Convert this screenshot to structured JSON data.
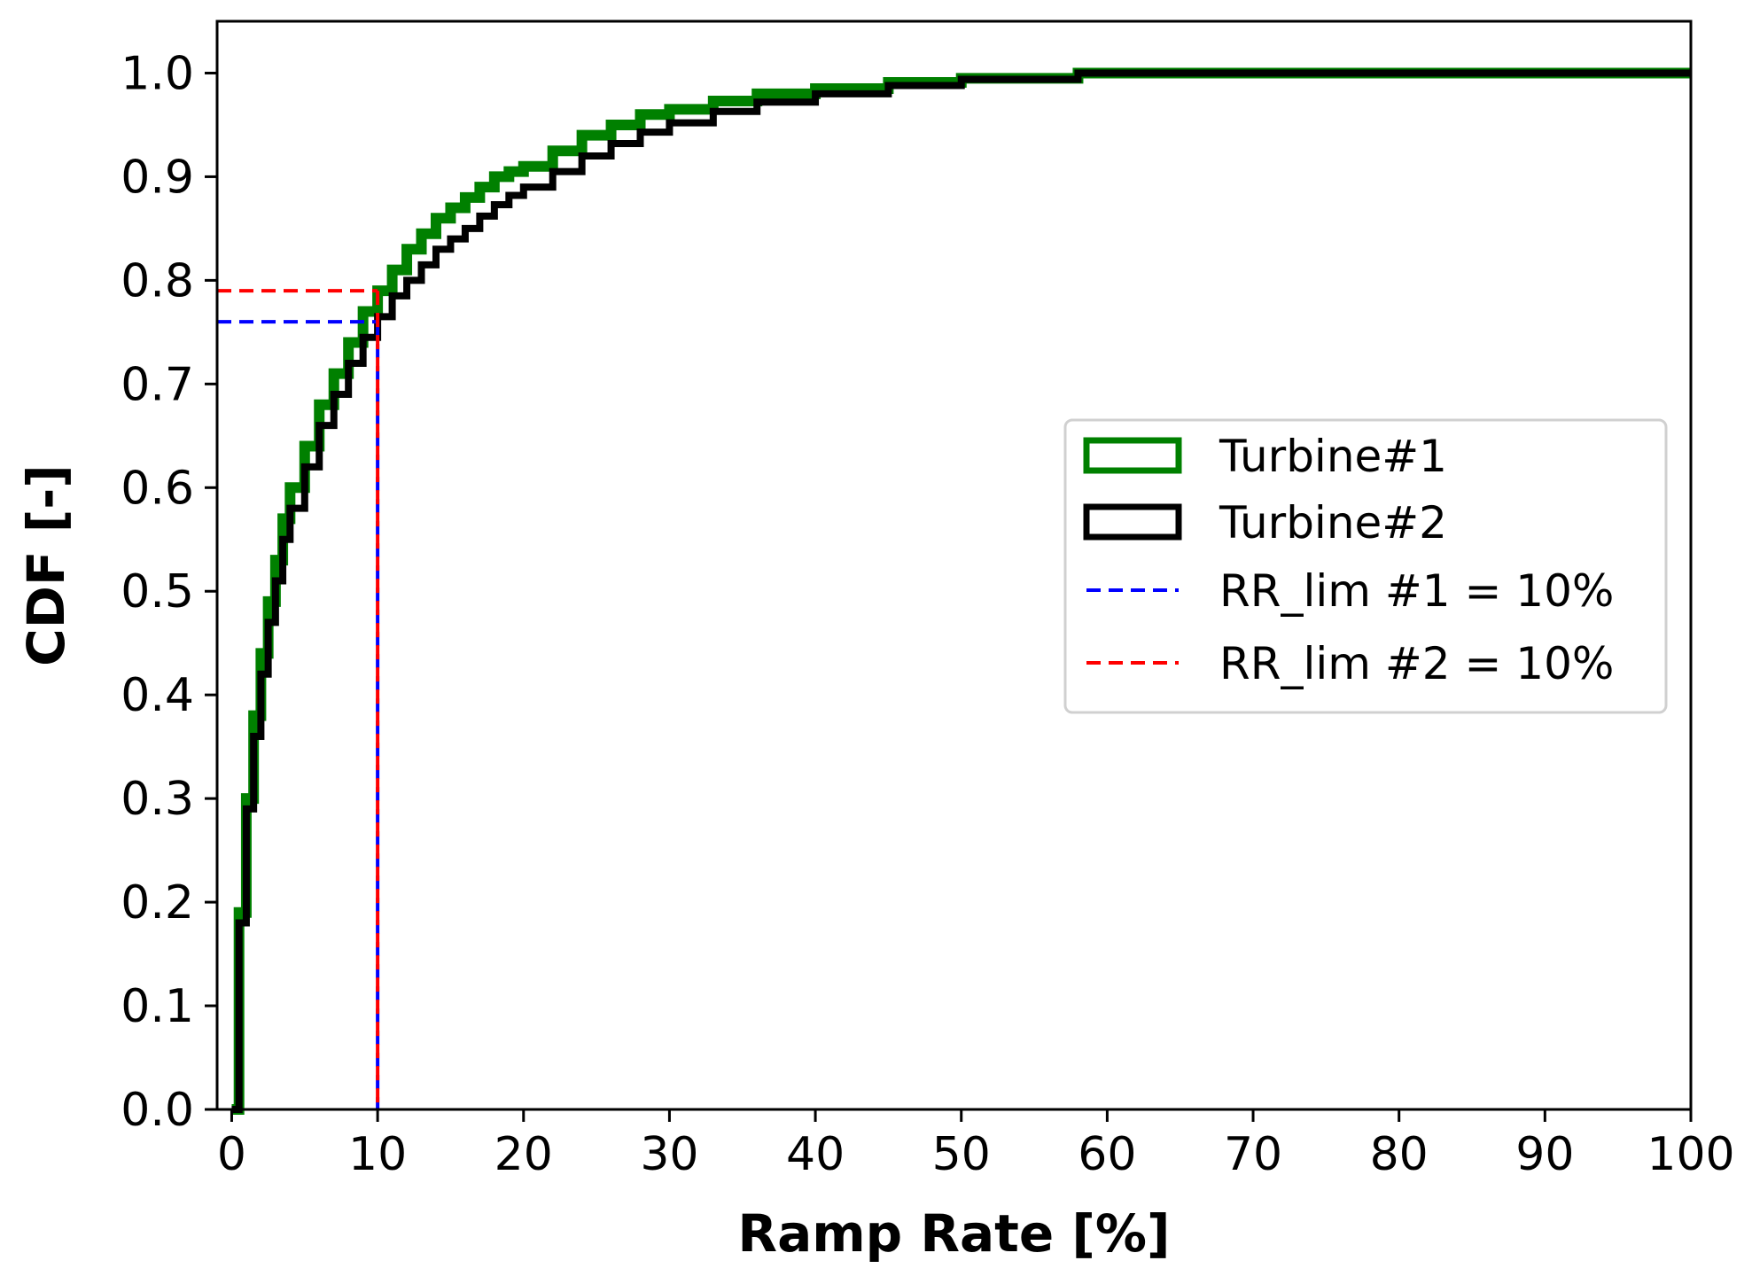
{
  "chart_data": {
    "type": "line",
    "subtype": "step-cdf",
    "title": "",
    "xlabel": "Ramp Rate [%]",
    "ylabel": "CDF [-]",
    "xlim": [
      -1,
      100
    ],
    "ylim": [
      0.0,
      1.05
    ],
    "xticks": [
      0,
      10,
      20,
      30,
      40,
      50,
      60,
      70,
      80,
      90,
      100
    ],
    "xtick_labels": [
      "0",
      "10",
      "20",
      "30",
      "40",
      "50",
      "60",
      "70",
      "80",
      "90",
      "100"
    ],
    "yticks": [
      0.0,
      0.1,
      0.2,
      0.3,
      0.4,
      0.5,
      0.6,
      0.7,
      0.8,
      0.9,
      1.0
    ],
    "ytick_labels": [
      "0.0",
      "0.1",
      "0.2",
      "0.3",
      "0.4",
      "0.5",
      "0.6",
      "0.7",
      "0.8",
      "0.9",
      "1.0"
    ],
    "legend_position": "center-right",
    "series": [
      {
        "name": "Turbine#1",
        "color": "#008000",
        "style": "step",
        "x": [
          0,
          0.5,
          1,
          1.5,
          2,
          2.5,
          3,
          3.5,
          4,
          5,
          6,
          7,
          8,
          9,
          10,
          11,
          12,
          13,
          14,
          15,
          16,
          17,
          18,
          19,
          20,
          22,
          24,
          26,
          28,
          30,
          33,
          36,
          40,
          45,
          50,
          58,
          100
        ],
        "y": [
          0.0,
          0.19,
          0.3,
          0.38,
          0.44,
          0.49,
          0.53,
          0.57,
          0.6,
          0.64,
          0.68,
          0.71,
          0.74,
          0.77,
          0.79,
          0.81,
          0.83,
          0.845,
          0.86,
          0.87,
          0.88,
          0.89,
          0.9,
          0.905,
          0.91,
          0.925,
          0.94,
          0.95,
          0.96,
          0.965,
          0.973,
          0.98,
          0.985,
          0.991,
          0.995,
          1.0,
          1.0
        ]
      },
      {
        "name": "Turbine#2",
        "color": "#000000",
        "style": "step",
        "x": [
          0,
          0.5,
          1,
          1.5,
          2,
          2.5,
          3,
          3.5,
          4,
          5,
          6,
          7,
          8,
          9,
          10,
          11,
          12,
          13,
          14,
          15,
          16,
          17,
          18,
          19,
          20,
          22,
          24,
          26,
          28,
          30,
          33,
          36,
          40,
          45,
          50,
          58,
          100
        ],
        "y": [
          0.0,
          0.18,
          0.29,
          0.36,
          0.42,
          0.47,
          0.51,
          0.55,
          0.58,
          0.62,
          0.66,
          0.69,
          0.72,
          0.745,
          0.765,
          0.785,
          0.8,
          0.815,
          0.83,
          0.84,
          0.85,
          0.862,
          0.873,
          0.882,
          0.89,
          0.905,
          0.92,
          0.932,
          0.943,
          0.952,
          0.963,
          0.972,
          0.98,
          0.988,
          0.994,
          1.0,
          1.0
        ]
      }
    ],
    "reference_lines": [
      {
        "name": "RR_lim #1 = 10%",
        "color": "#0000ff",
        "style": "dashed",
        "x_at": 10,
        "y_at": 0.76
      },
      {
        "name": "RR_lim #2 = 10%",
        "color": "#ff0000",
        "style": "dashed",
        "x_at": 10,
        "y_at": 0.79
      }
    ],
    "legend": [
      "Turbine#1",
      "Turbine#2",
      "RR_lim #1 = 10%",
      "RR_lim #2 = 10%"
    ]
  }
}
